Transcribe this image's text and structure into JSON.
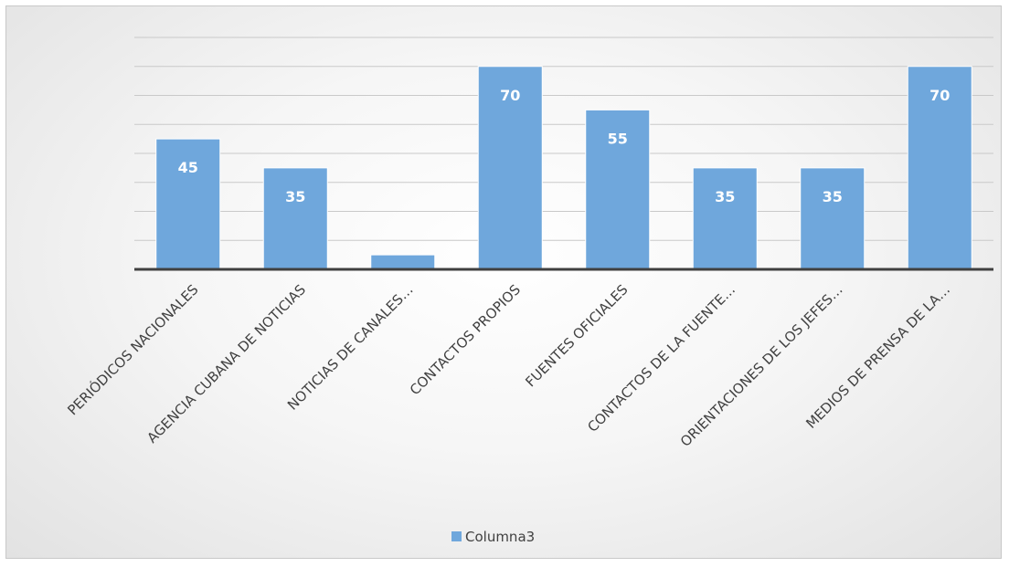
{
  "chart_data": {
    "type": "bar",
    "title": "",
    "xlabel": "",
    "ylabel": "",
    "categories": [
      "PERIÓDICOS NACIONALES",
      "AGENCIA CUBANA DE NOTICIAS",
      "NOTICIAS DE CANALES…",
      "CONTACTOS PROPIOS",
      "FUENTES OFICIALES",
      "CONTACTOS DE LA FUENTE…",
      "ORIENTACIONES DE LOS JEFES…",
      "MEDIOS DE PRENSA DE LA…"
    ],
    "series": [
      {
        "name": "Columna3",
        "values": [
          45,
          35,
          5,
          70,
          55,
          35,
          35,
          70
        ],
        "data_labels": [
          "45",
          "35",
          "",
          "70",
          "55",
          "35",
          "35",
          "70"
        ],
        "color": "#6fa7dc"
      }
    ],
    "ylim": [
      0,
      80
    ],
    "grid": true,
    "legend_position": "bottom"
  }
}
